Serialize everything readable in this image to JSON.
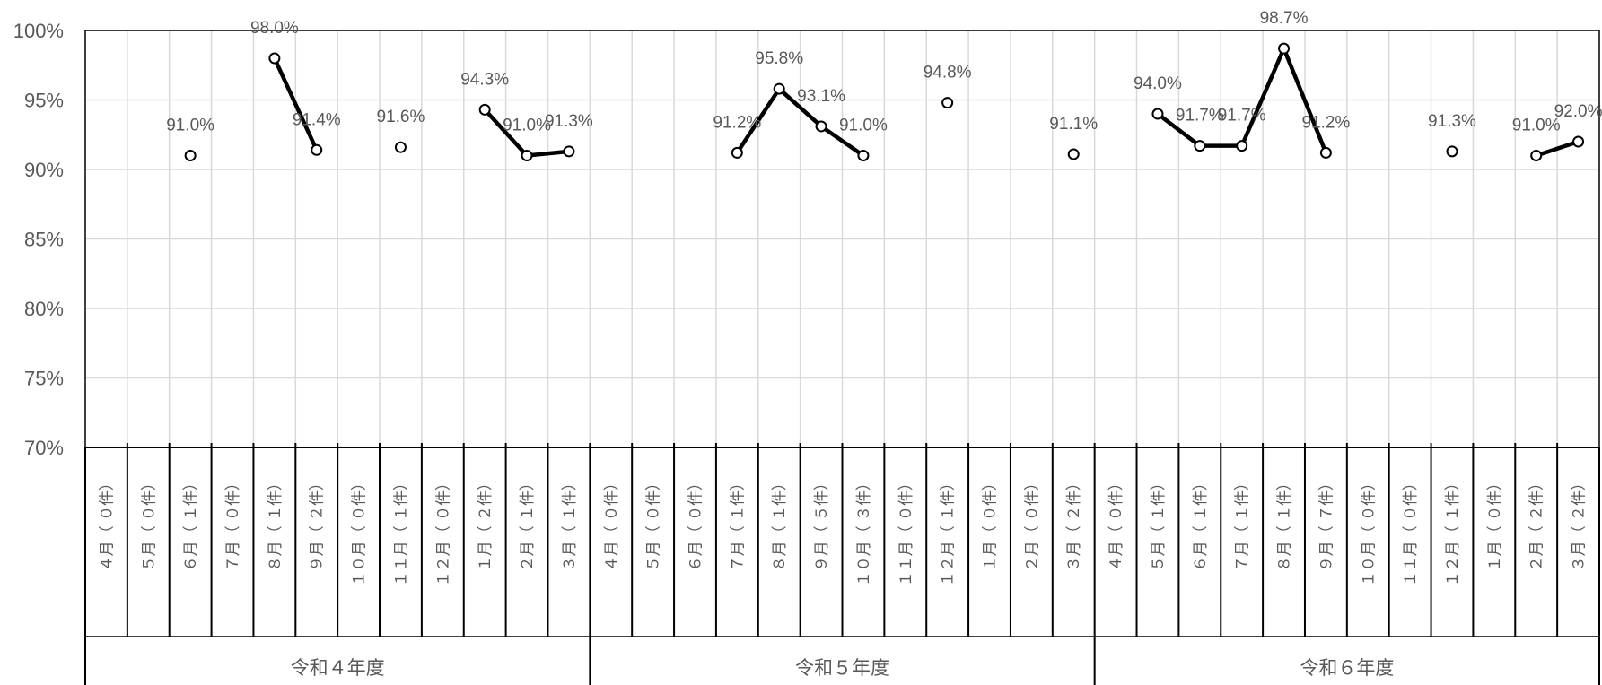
{
  "chart_data": {
    "type": "line",
    "ylim": [
      70,
      100
    ],
    "yticks": [
      70,
      75,
      80,
      85,
      90,
      95,
      100
    ],
    "ytick_labels": [
      "70%",
      "75%",
      "80%",
      "85%",
      "90%",
      "95%",
      "100%"
    ],
    "grid": true,
    "legend": "none",
    "years": [
      "令和４年度",
      "令和５年度",
      "令和６年度"
    ],
    "categories": [
      "４月（ ０件）",
      "５月（ ０件）",
      "６月（ １件）",
      "７月（ ０件）",
      "８月（ １件）",
      "９月（ ２件）",
      "１０月（ ０件）",
      "１１月（ １件）",
      "１２月（ ０件）",
      "１月（ ２件）",
      "２月（ １件）",
      "３月（ １件）",
      "４月（ ０件）",
      "５月（ ０件）",
      "６月（ ０件）",
      "７月（ １件）",
      "８月（ １件）",
      "９月（ ５件）",
      "１０月（ ３件）",
      "１１月（ ０件）",
      "１２月（ １件）",
      "１月（ ０件）",
      "２月（ ０件）",
      "３月（ ２件）",
      "４月（ ０件）",
      "５月（ １件）",
      "６月（ １件）",
      "７月（ １件）",
      "８月（ １件）",
      "９月（ ７件）",
      "１０月（ ０件）",
      "１１月（ ０件）",
      "１２月（ １件）",
      "１月（ ０件）",
      "２月（ ２件）",
      "３月（ ２件）"
    ],
    "series": [
      {
        "values": [
          null,
          null,
          91.0,
          null,
          98.0,
          91.4,
          null,
          91.6,
          null,
          94.3,
          91.0,
          91.3,
          null,
          null,
          null,
          91.2,
          95.8,
          93.1,
          91.0,
          null,
          94.8,
          null,
          null,
          91.1,
          null,
          94.0,
          91.7,
          91.7,
          98.7,
          91.2,
          null,
          null,
          91.3,
          null,
          91.0,
          92.0
        ],
        "labels": [
          null,
          null,
          "91.0%",
          null,
          "98.0%",
          "91.4%",
          null,
          "91.6%",
          null,
          "94.3%",
          "91.0%",
          "91.3%",
          null,
          null,
          null,
          "91.2%",
          "95.8%",
          "93.1%",
          "91.0%",
          null,
          "94.8%",
          null,
          null,
          "91.1%",
          null,
          "94.0%",
          "91.7%",
          "91.7%",
          "98.7%",
          "91.2%",
          null,
          null,
          "91.3%",
          null,
          "91.0%",
          "92.0%"
        ]
      }
    ]
  }
}
